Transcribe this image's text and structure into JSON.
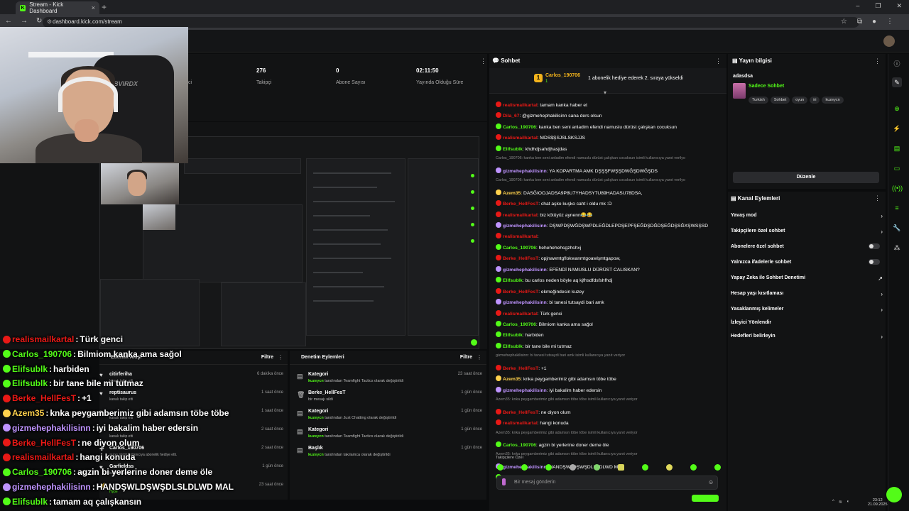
{
  "browser": {
    "tab_title": "Stream - Kick Dashboard",
    "url": "dashboard.kick.com/stream"
  },
  "stats": [
    {
      "value": "",
      "label": "ci"
    },
    {
      "value": "276",
      "label": "Takipçi"
    },
    {
      "value": "0",
      "label": "Abone Sayısı"
    },
    {
      "value": "02:11:50",
      "label": "Yayında Olduğu Süre"
    }
  ],
  "chat": {
    "title": "Sohbet",
    "pinned_user": "Carlos_190706",
    "pinned_count": "1",
    "pinned_text": "1 abonelik hediye ederek 2. sıraya yükseldi",
    "input_placeholder": "Bir mesaj gönderin",
    "followers_only_label": "Takipçilere Özel",
    "messages": [
      {
        "user": "realismailkartal",
        "text": ": tamam kanka haber et",
        "color": "#e91916",
        "reply": false
      },
      {
        "user": "Dila_67",
        "text": ": @gizmehephakilisinn sana ders olsun",
        "color": "#e91916",
        "reply": false
      },
      {
        "user": "Carlos_190706",
        "text": ": kanka ben seni anladim efendi namuslu dürüst çalışkan cocuksun",
        "color": "#53fc18",
        "reply": false
      },
      {
        "user": "realismailkartal",
        "text": ": MDS$ŞSJSLSKSJJS",
        "color": "#e91916",
        "reply": false
      },
      {
        "user": "Elifsublk",
        "text": ": khdhdjsahdjhasjdas",
        "color": "#53fc18",
        "reply": false
      },
      {
        "user": "",
        "text": "Carlos_190706: kanka ben seni anladim efendi namuslu dürüst çalışkan cocuksun isimli kullanıcıya yanıt verilyo",
        "color": "#888",
        "reply": true
      },
      {
        "user": "gizmehephakilisinn",
        "text": ": YA KOPARTMA AMK DŞŞŞFWŞŞDWĞŞDWĞŞDS",
        "color": "#bf94ff",
        "reply": false
      },
      {
        "user": "",
        "text": "Carlos_190706: kanka ben seni anladim efendi namuslu dürüst çalışkan cocuksun isimli kullanıcıya yanıt verilyo",
        "color": "#888",
        "reply": true
      },
      {
        "user": "Azem35",
        "text": ": DASĞIOOJADSA9P8U7YHADSY7U89HADASU78DSA,",
        "color": "#ffd24d",
        "reply": false
      },
      {
        "user": "Berke_HellFesT",
        "text": ": chat aşko kuşko caht i oldu mk :D",
        "color": "#e91916",
        "reply": false
      },
      {
        "user": "realismailkartal",
        "text": ": biz kötüyüz aynenn😂😂",
        "color": "#e91916",
        "reply": false
      },
      {
        "user": "gizmehephakilisinn",
        "text": ": DŞWPDŞWĞDŞWPDLEĞDLEPDŞEPFŞEĞDŞDĞDŞEĞDŞSĞXŞWSŞSD",
        "color": "#bf94ff",
        "reply": false
      },
      {
        "user": "realismailkartal",
        "text": ":",
        "color": "#e91916",
        "reply": false
      },
      {
        "user": "Carlos_190706",
        "text": ": hehehehehsgzhshxj",
        "color": "#53fc18",
        "reply": false
      },
      {
        "user": "Berke_HellFesT",
        "text": ": opjnawmtgflokwanmtgoawlşmtgapow,",
        "color": "#e91916",
        "reply": false
      },
      {
        "user": "gizmehephakilisinn",
        "text": ": EFENDİ NAMUSLU DÜRÜST CALISKAN?",
        "color": "#bf94ff",
        "reply": false
      },
      {
        "user": "Elifsublk",
        "text": ": bu carlos neden böyle aq kjfhsdfdsfshfhdj",
        "color": "#53fc18",
        "reply": false
      },
      {
        "user": "Berke_HellFesT",
        "text": ": ekmeğindesin kuzey",
        "color": "#e91916",
        "reply": false
      },
      {
        "user": "gizmehephakilisinn",
        "text": ": bi tanesi tutsaydi bari amk",
        "color": "#bf94ff",
        "reply": false
      },
      {
        "user": "realismailkartal",
        "text": ": Türk genci",
        "color": "#e91916",
        "reply": false
      },
      {
        "user": "Carlos_190706",
        "text": ": Bilmiom kanka ama sağol",
        "color": "#53fc18",
        "reply": false
      },
      {
        "user": "Elifsublk",
        "text": ": harbiden",
        "color": "#53fc18",
        "reply": false
      },
      {
        "user": "Elifsublk",
        "text": ": bir tane bile mi tutmaz",
        "color": "#53fc18",
        "reply": false
      },
      {
        "user": "",
        "text": "gizmehephakilisinn: bi tanesi tutsaydi bari amk isimli kullanıcıya yanıt veriyor",
        "color": "#888",
        "reply": true
      },
      {
        "user": "Berke_HellFesT",
        "text": ": +1",
        "color": "#e91916",
        "reply": false
      },
      {
        "user": "Azem35",
        "text": ": knka peygamberimiz gibi adamsın töbe töbe",
        "color": "#ffd24d",
        "reply": false
      },
      {
        "user": "gizmehephakilisinn",
        "text": ": iyi bakalim haber edersin",
        "color": "#bf94ff",
        "reply": false
      },
      {
        "user": "",
        "text": "Azem35: knka peygamberimiz gibi adamsın töbe töbe isimli kullanıcıya yanıt veriyor",
        "color": "#888",
        "reply": true
      },
      {
        "user": "Berke_HellFesT",
        "text": ": ne diyon olum",
        "color": "#e91916",
        "reply": false
      },
      {
        "user": "realismailkartal",
        "text": ": hangi konuda",
        "color": "#e91916",
        "reply": false
      },
      {
        "user": "",
        "text": "Azem35: knka peygamberimiz gibi adamsın töbe töbe isimli kullanıcıya yanıt veriyor",
        "color": "#888",
        "reply": true
      },
      {
        "user": "Carlos_190706",
        "text": ": agzin bi yerlerine doner deme öle",
        "color": "#53fc18",
        "reply": false
      },
      {
        "user": "",
        "text": "Azem35: knka peygamberimiz gibi adamsın töbe töbe isimli kullanıcıya yanıt veriyor",
        "color": "#888",
        "reply": true
      },
      {
        "user": "gizmehephakilisinn",
        "text": ": HANDŞWLDŞWŞDLSLDLWD MAL",
        "color": "#bf94ff",
        "reply": false
      },
      {
        "user": "Elifsublk",
        "text": ": tamam aq çalışkansın",
        "color": "#53fc18",
        "reply": false
      }
    ]
  },
  "overlay_chat": [
    {
      "user": "realismailkartal",
      "text": " Türk genci",
      "color": "#e91916"
    },
    {
      "user": "Carlos_190706",
      "text": " Bilmiom kanka ama sağol",
      "color": "#53fc18"
    },
    {
      "user": "Elifsublk",
      "text": " harbiden",
      "color": "#53fc18"
    },
    {
      "user": "Elifsublk",
      "text": " bir tane bile mi tutmaz",
      "color": "#53fc18"
    },
    {
      "user": "Berke_HellFesT",
      "text": " +1",
      "color": "#e91916"
    },
    {
      "user": "Azem35",
      "text": " knka peygamberimiz gibi adamsın töbe töbe",
      "color": "#ffd24d"
    },
    {
      "user": "gizmehephakilisinn",
      "text": " iyi bakalim haber edersin",
      "color": "#bf94ff"
    },
    {
      "user": "Berke_HellFesT",
      "text": " ne diyon olum",
      "color": "#e91916"
    },
    {
      "user": "realismailkartal",
      "text": " hangi konuda",
      "color": "#e91916"
    },
    {
      "user": "Carlos_190706",
      "text": " agzin bi yerlerine doner deme öle",
      "color": "#53fc18"
    },
    {
      "user": "gizmehephakilisinn",
      "text": " HANDŞWLDŞWŞDLSLDLWD MAL",
      "color": "#bf94ff"
    },
    {
      "user": "Elifsublk",
      "text": " tamam aq çalışkansın",
      "color": "#53fc18"
    }
  ],
  "activity": {
    "title": "Etkinlik Akışı",
    "filter": "Filtre",
    "items": [
      {
        "name": "citirferiha",
        "sub": "kanalı takip etti",
        "time": "6 dakika önce"
      },
      {
        "name": "reptisaurus",
        "sub": "kanalı takip etti",
        "time": "1 saat önce"
      },
      {
        "name": "",
        "sub": "kanalı takip etti",
        "time": "1 saat önce"
      },
      {
        "name": "",
        "sub": "kanalı takip etti",
        "time": "2 saat önce"
      },
      {
        "name": "Carlos_190706",
        "sub": "araxy isimli kullanıcıya abonelik hediye etti.",
        "time": "2 saat önce"
      },
      {
        "name": "Garfieldss",
        "sub": "kanalı takip etti",
        "time": "1 gün önce"
      },
      {
        "name": "",
        "sub": "Hype",
        "time": "23 saat önce"
      }
    ]
  },
  "moderation": {
    "title": "Denetim Eylemleri",
    "filter": "Filtre",
    "items": [
      {
        "name": "Kategori",
        "user": "kuzeycn",
        "sub": " tarafından Teamfight Tactics olarak değiştirildi",
        "time": "23 saat önce"
      },
      {
        "name": "Berke_HellFesT",
        "user": "",
        "sub": "bir mesajı sildi",
        "time": "1 gün önce"
      },
      {
        "name": "Kategori",
        "user": "kuzeycn",
        "sub": " tarafından Just Chatting olarak değiştirildi",
        "time": "1 gün önce"
      },
      {
        "name": "Kategori",
        "user": "kuzeycn",
        "sub": " tarafından Teamfight Tactics olarak değiştirildi",
        "time": "1 gün önce"
      },
      {
        "name": "Başlık",
        "user": "kuzeycn",
        "sub": " tarafından takılamca olarak değiştirildi",
        "time": "1 gün önce"
      }
    ]
  },
  "stream_info": {
    "title": "Yayın bilgisi",
    "stream_title": "adasdsa",
    "category": "Sadece Sohbet",
    "tags": [
      "Turkish",
      "Sohbet",
      "oyun",
      "iri",
      "kuzeycn"
    ],
    "edit_label": "Düzenle"
  },
  "channel_actions": {
    "title": "Kanal Eylemleri",
    "items": [
      {
        "label": "Yavaş mod",
        "control": "arrow"
      },
      {
        "label": "Takipçilere özel sohbet",
        "control": "arrow"
      },
      {
        "label": "Abonelere özel sohbet",
        "control": "toggle"
      },
      {
        "label": "Yalnızca ifadelerle sohbet",
        "control": "toggle"
      },
      {
        "label": "Yapay Zeka ile Sohbet Denetimi",
        "control": "external"
      },
      {
        "label": "Hesap yaşı kısıtlaması",
        "control": "arrow"
      },
      {
        "label": "Yasaklanmış kelimeler",
        "control": "arrow"
      },
      {
        "label": "İzleyici Yönlendir",
        "control": "none"
      },
      {
        "label": "Hedefleri belirleyin",
        "control": "arrow"
      }
    ]
  },
  "taskbar": {
    "time": "23:12",
    "date": "21.09.2025"
  },
  "colors": {
    "accent": "#53fc18",
    "background": "#0b0c0d",
    "panel": "#121314"
  }
}
